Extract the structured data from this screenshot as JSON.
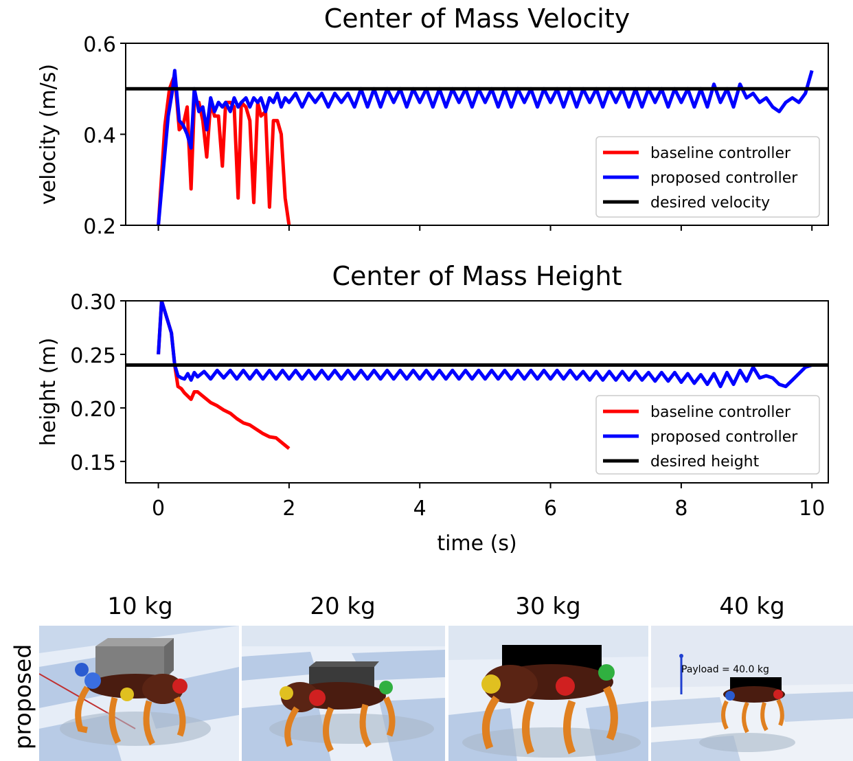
{
  "chart_data": [
    {
      "type": "line",
      "title": "Center of Mass Velocity",
      "xlabel": "",
      "ylabel": "velocity (m/s)",
      "xlim": [
        -0.5,
        10.25
      ],
      "ylim": [
        0.2,
        0.6
      ],
      "xticks": [
        0,
        2,
        4,
        6,
        8,
        10
      ],
      "yticks": [
        0.2,
        0.4,
        0.6
      ],
      "ytick_labels": [
        "0.2",
        "0.4",
        "0.6"
      ],
      "legend_position": "lower-right",
      "series": [
        {
          "name": "baseline controller",
          "color": "#ff0000",
          "x": [
            0.0,
            0.1,
            0.17,
            0.25,
            0.32,
            0.38,
            0.44,
            0.5,
            0.55,
            0.62,
            0.68,
            0.74,
            0.8,
            0.86,
            0.92,
            0.98,
            1.03,
            1.1,
            1.16,
            1.22,
            1.27,
            1.34,
            1.4,
            1.46,
            1.52,
            1.57,
            1.64,
            1.7,
            1.76,
            1.82,
            1.88,
            1.94,
            2.0
          ],
          "y": [
            0.2,
            0.42,
            0.5,
            0.53,
            0.41,
            0.42,
            0.46,
            0.28,
            0.47,
            0.47,
            0.43,
            0.35,
            0.47,
            0.44,
            0.44,
            0.33,
            0.47,
            0.47,
            0.46,
            0.26,
            0.47,
            0.46,
            0.43,
            0.25,
            0.47,
            0.44,
            0.45,
            0.24,
            0.43,
            0.43,
            0.4,
            0.26,
            0.2
          ]
        },
        {
          "name": "proposed controller",
          "color": "#0000ff",
          "x": [
            0.0,
            0.05,
            0.15,
            0.22,
            0.25,
            0.32,
            0.38,
            0.44,
            0.5,
            0.55,
            0.62,
            0.68,
            0.74,
            0.8,
            0.86,
            0.92,
            0.98,
            1.03,
            1.1,
            1.16,
            1.22,
            1.27,
            1.34,
            1.4,
            1.46,
            1.52,
            1.57,
            1.64,
            1.7,
            1.76,
            1.82,
            1.88,
            1.94,
            2.0,
            2.1,
            2.2,
            2.3,
            2.4,
            2.5,
            2.6,
            2.7,
            2.8,
            2.9,
            3.0,
            3.1,
            3.2,
            3.3,
            3.4,
            3.5,
            3.6,
            3.7,
            3.8,
            3.9,
            4.0,
            4.1,
            4.2,
            4.3,
            4.4,
            4.5,
            4.6,
            4.7,
            4.8,
            4.9,
            5.0,
            5.1,
            5.2,
            5.3,
            5.4,
            5.5,
            5.6,
            5.7,
            5.8,
            5.9,
            6.0,
            6.1,
            6.2,
            6.3,
            6.4,
            6.5,
            6.6,
            6.7,
            6.8,
            6.9,
            7.0,
            7.1,
            7.2,
            7.3,
            7.4,
            7.5,
            7.6,
            7.7,
            7.8,
            7.9,
            8.0,
            8.1,
            8.2,
            8.3,
            8.4,
            8.5,
            8.6,
            8.7,
            8.8,
            8.9,
            9.0,
            9.1,
            9.2,
            9.3,
            9.4,
            9.5,
            9.6,
            9.7,
            9.8,
            9.9,
            10.0
          ],
          "y": [
            0.2,
            0.28,
            0.44,
            0.5,
            0.54,
            0.43,
            0.42,
            0.4,
            0.37,
            0.5,
            0.45,
            0.46,
            0.41,
            0.48,
            0.45,
            0.47,
            0.46,
            0.47,
            0.45,
            0.48,
            0.46,
            0.47,
            0.48,
            0.46,
            0.48,
            0.47,
            0.48,
            0.45,
            0.48,
            0.47,
            0.49,
            0.46,
            0.48,
            0.47,
            0.49,
            0.46,
            0.49,
            0.47,
            0.49,
            0.46,
            0.49,
            0.47,
            0.49,
            0.46,
            0.5,
            0.46,
            0.5,
            0.46,
            0.5,
            0.47,
            0.5,
            0.46,
            0.5,
            0.47,
            0.5,
            0.46,
            0.5,
            0.46,
            0.5,
            0.47,
            0.5,
            0.46,
            0.5,
            0.47,
            0.5,
            0.46,
            0.5,
            0.46,
            0.5,
            0.47,
            0.5,
            0.46,
            0.5,
            0.47,
            0.5,
            0.46,
            0.5,
            0.46,
            0.5,
            0.47,
            0.5,
            0.46,
            0.5,
            0.47,
            0.5,
            0.46,
            0.5,
            0.46,
            0.5,
            0.47,
            0.5,
            0.46,
            0.5,
            0.47,
            0.5,
            0.46,
            0.5,
            0.46,
            0.51,
            0.47,
            0.5,
            0.46,
            0.51,
            0.48,
            0.49,
            0.47,
            0.48,
            0.46,
            0.45,
            0.47,
            0.48,
            0.47,
            0.49,
            0.54
          ]
        },
        {
          "name": "desired velocity",
          "color": "#000000",
          "x": [
            -0.5,
            10.25
          ],
          "y": [
            0.5,
            0.5
          ]
        }
      ]
    },
    {
      "type": "line",
      "title": "Center of Mass Height",
      "xlabel": "time (s)",
      "ylabel": "height (m)",
      "xlim": [
        -0.5,
        10.25
      ],
      "ylim": [
        0.13,
        0.3
      ],
      "xticks": [
        0,
        2,
        4,
        6,
        8,
        10
      ],
      "yticks": [
        0.15,
        0.2,
        0.25,
        0.3
      ],
      "ytick_labels": [
        "0.15",
        "0.20",
        "0.25",
        "0.30"
      ],
      "legend_position": "lower-right",
      "series": [
        {
          "name": "baseline controller",
          "color": "#ff0000",
          "x": [
            0.0,
            0.05,
            0.1,
            0.2,
            0.25,
            0.3,
            0.35,
            0.4,
            0.5,
            0.55,
            0.6,
            0.7,
            0.8,
            0.9,
            1.0,
            1.1,
            1.2,
            1.3,
            1.4,
            1.5,
            1.6,
            1.7,
            1.8,
            1.9,
            2.0
          ],
          "y": [
            0.25,
            0.3,
            0.29,
            0.27,
            0.24,
            0.22,
            0.218,
            0.214,
            0.208,
            0.215,
            0.215,
            0.21,
            0.205,
            0.202,
            0.198,
            0.195,
            0.19,
            0.186,
            0.184,
            0.18,
            0.176,
            0.173,
            0.172,
            0.167,
            0.162
          ]
        },
        {
          "name": "proposed controller",
          "color": "#0000ff",
          "x": [
            0.0,
            0.05,
            0.1,
            0.2,
            0.25,
            0.3,
            0.35,
            0.4,
            0.45,
            0.5,
            0.55,
            0.6,
            0.7,
            0.8,
            0.9,
            1.0,
            1.1,
            1.2,
            1.3,
            1.4,
            1.5,
            1.6,
            1.7,
            1.8,
            1.9,
            2.0,
            2.1,
            2.2,
            2.3,
            2.4,
            2.5,
            2.6,
            2.7,
            2.8,
            2.9,
            3.0,
            3.1,
            3.2,
            3.3,
            3.4,
            3.5,
            3.6,
            3.7,
            3.8,
            3.9,
            4.0,
            4.1,
            4.2,
            4.3,
            4.4,
            4.5,
            4.6,
            4.7,
            4.8,
            4.9,
            5.0,
            5.1,
            5.2,
            5.3,
            5.4,
            5.5,
            5.6,
            5.7,
            5.8,
            5.9,
            6.0,
            6.1,
            6.2,
            6.3,
            6.4,
            6.5,
            6.6,
            6.7,
            6.8,
            6.9,
            7.0,
            7.1,
            7.2,
            7.3,
            7.4,
            7.5,
            7.6,
            7.7,
            7.8,
            7.9,
            8.0,
            8.1,
            8.2,
            8.3,
            8.4,
            8.5,
            8.6,
            8.7,
            8.8,
            8.9,
            9.0,
            9.1,
            9.2,
            9.3,
            9.4,
            9.5,
            9.6,
            9.7,
            9.8,
            9.9,
            10.0
          ],
          "y": [
            0.25,
            0.3,
            0.29,
            0.27,
            0.24,
            0.23,
            0.228,
            0.227,
            0.232,
            0.226,
            0.233,
            0.229,
            0.234,
            0.227,
            0.235,
            0.228,
            0.235,
            0.227,
            0.235,
            0.227,
            0.235,
            0.227,
            0.235,
            0.227,
            0.235,
            0.227,
            0.235,
            0.227,
            0.235,
            0.227,
            0.235,
            0.227,
            0.235,
            0.227,
            0.235,
            0.227,
            0.235,
            0.227,
            0.235,
            0.227,
            0.235,
            0.227,
            0.235,
            0.227,
            0.235,
            0.227,
            0.235,
            0.227,
            0.235,
            0.227,
            0.235,
            0.227,
            0.235,
            0.227,
            0.235,
            0.227,
            0.235,
            0.227,
            0.235,
            0.227,
            0.235,
            0.227,
            0.235,
            0.227,
            0.235,
            0.227,
            0.235,
            0.227,
            0.235,
            0.227,
            0.234,
            0.226,
            0.234,
            0.226,
            0.234,
            0.226,
            0.234,
            0.226,
            0.234,
            0.226,
            0.233,
            0.225,
            0.233,
            0.225,
            0.233,
            0.224,
            0.232,
            0.223,
            0.231,
            0.222,
            0.232,
            0.22,
            0.233,
            0.222,
            0.235,
            0.225,
            0.238,
            0.228,
            0.23,
            0.228,
            0.222,
            0.22,
            0.226,
            0.232,
            0.238,
            0.24
          ]
        },
        {
          "name": "desired height",
          "color": "#000000",
          "x": [
            -0.5,
            10.25
          ],
          "y": [
            0.24,
            0.24
          ]
        }
      ]
    }
  ],
  "panels": {
    "row_label": "proposed",
    "items": [
      {
        "label": "10 kg"
      },
      {
        "label": "20 kg"
      },
      {
        "label": "30 kg"
      },
      {
        "label": "40 kg",
        "overlay_text": "Payload = 40.0 kg"
      }
    ]
  }
}
